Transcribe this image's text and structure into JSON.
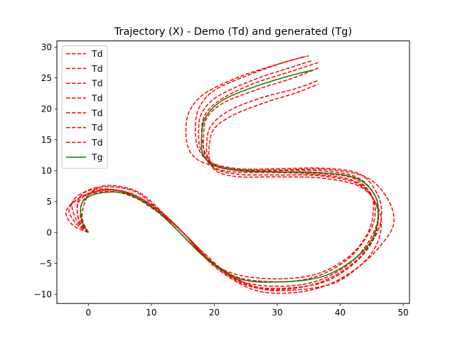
{
  "chart_data": {
    "type": "line",
    "title": "Trajectory (X) - Demo (Td) and generated (Tg)",
    "xlabel": "",
    "ylabel": "",
    "xlim": [
      -5,
      51
    ],
    "ylim": [
      -11.5,
      31
    ],
    "xticks": [
      0,
      10,
      20,
      30,
      40,
      50
    ],
    "yticks": [
      -10,
      -5,
      0,
      5,
      10,
      15,
      20,
      25,
      30
    ],
    "grid": false,
    "legend_position": "upper-left",
    "series": [
      {
        "name": "Td",
        "color": "#ff0000",
        "style": "dashed",
        "x": [
          0,
          -2,
          -3,
          0,
          5,
          10,
          14,
          18,
          23,
          30,
          36,
          41,
          44,
          45.5,
          45,
          42,
          36,
          30,
          24,
          20,
          18.5,
          18,
          18.5,
          21,
          26,
          32,
          36.5
        ],
        "y": [
          0,
          1.5,
          4,
          6.3,
          6.8,
          4.5,
          1,
          -3,
          -7,
          -8,
          -7.2,
          -4.5,
          -1,
          2.5,
          6,
          8.8,
          9.6,
          9.8,
          10,
          11,
          13,
          16,
          19,
          21.5,
          24,
          26,
          27.5
        ]
      },
      {
        "name": "Td",
        "color": "#ff0000",
        "style": "dashed",
        "x": [
          0,
          -1.5,
          -1.5,
          1.5,
          7,
          11,
          15,
          19,
          25,
          31,
          37,
          42,
          45,
          46.5,
          46,
          43,
          37,
          30,
          24,
          19.5,
          17.5,
          17,
          17.5,
          20,
          25.5,
          31,
          35
        ],
        "y": [
          0,
          2,
          5.5,
          7.3,
          6.8,
          3.8,
          0,
          -4.5,
          -8.5,
          -9.2,
          -8,
          -5,
          -1.5,
          2,
          6,
          9.5,
          10.4,
          10.3,
          10.3,
          11.3,
          13.5,
          16.5,
          20,
          23,
          25.5,
          27.5,
          28.6
        ]
      },
      {
        "name": "Td",
        "color": "#ff0000",
        "style": "dashed",
        "x": [
          0,
          -2.5,
          -3.5,
          -1,
          4,
          9,
          13,
          17,
          22,
          29,
          36,
          41,
          44,
          45.2,
          44.8,
          41.5,
          35,
          29,
          23,
          19.8,
          18.5,
          18.3,
          18.8,
          21.5,
          27,
          32.5,
          36.5
        ],
        "y": [
          0,
          1.2,
          3.5,
          5.8,
          6.6,
          4.8,
          1.5,
          -2.5,
          -6.3,
          -7.5,
          -6.8,
          -4.2,
          -0.8,
          2.8,
          6.3,
          8.6,
          9.5,
          9.7,
          9.8,
          10.6,
          12.5,
          15.5,
          18.5,
          21,
          23.2,
          25,
          26.6
        ]
      },
      {
        "name": "Td",
        "color": "#ff0000",
        "style": "dashed",
        "x": [
          0,
          -1,
          0,
          3,
          8,
          12,
          16,
          20,
          26,
          32,
          38,
          43,
          46.5,
          48.5,
          47.5,
          44,
          37.5,
          30,
          23.5,
          18.5,
          16.2,
          15.5,
          16,
          18.5,
          24,
          30,
          34.5
        ],
        "y": [
          0,
          2.5,
          6,
          7.6,
          6.5,
          3,
          -1,
          -5.5,
          -9.2,
          -9.8,
          -8.5,
          -5.5,
          -2,
          1.5,
          5.5,
          9,
          10.2,
          10.1,
          10.2,
          11.2,
          13,
          16,
          19.5,
          22.5,
          25.2,
          27.2,
          28.5
        ]
      },
      {
        "name": "Td",
        "color": "#ff0000",
        "style": "dashed",
        "x": [
          0,
          -1.8,
          -2.5,
          0.5,
          5.5,
          10,
          14.5,
          18.5,
          24,
          30.5,
          36.5,
          41.5,
          44.5,
          46,
          45.5,
          42.5,
          36.5,
          30,
          24,
          20,
          18,
          17.5,
          18,
          20.5,
          26,
          31.5,
          35.5
        ],
        "y": [
          0,
          1.8,
          5,
          6.9,
          6.6,
          4,
          0.5,
          -3.8,
          -7.8,
          -8.7,
          -7.8,
          -5,
          -1.5,
          2.2,
          6,
          9,
          10,
          10,
          10.1,
          11,
          13,
          16,
          19.3,
          22,
          24.6,
          26.5,
          27.8
        ]
      },
      {
        "name": "Td",
        "color": "#ff0000",
        "style": "dashed",
        "x": [
          0,
          -1.2,
          -0.8,
          2,
          7,
          11.5,
          16,
          20.5,
          27,
          33,
          39,
          43,
          45.5,
          46.5,
          45.8,
          43,
          37,
          30,
          24,
          20.5,
          19.3,
          19.2,
          20,
          23,
          28,
          33,
          36.5
        ],
        "y": [
          0,
          2,
          5.2,
          6.8,
          6.2,
          3.2,
          -1,
          -5.5,
          -9,
          -9.3,
          -8.2,
          -5.5,
          -2.5,
          1,
          4.5,
          7.5,
          8.8,
          9,
          9,
          9.8,
          11.5,
          14,
          16.8,
          19,
          21,
          22.6,
          24
        ]
      },
      {
        "name": "Td",
        "color": "#ff0000",
        "style": "dashed",
        "x": [
          0,
          -1.5,
          -1.5,
          1.5,
          6.5,
          11,
          15.5,
          19.5,
          25.5,
          31.5,
          37.5,
          42,
          44.8,
          46,
          45.5,
          42.5,
          36.5,
          30,
          24,
          20.3,
          19,
          18.8,
          19.5,
          22.5,
          27.5,
          33,
          36.5
        ],
        "y": [
          0,
          1.8,
          5,
          6.8,
          6.4,
          3.5,
          -0.5,
          -4.8,
          -8.5,
          -9,
          -8,
          -5.2,
          -2,
          1.5,
          5,
          8,
          9.2,
          9.3,
          9.4,
          10.2,
          12,
          14.5,
          17.3,
          19.8,
          21.8,
          23.3,
          24.6
        ]
      },
      {
        "name": "Tg",
        "color": "#007f00",
        "style": "solid",
        "x": [
          0,
          -1,
          -1,
          1.5,
          6,
          10.5,
          14.5,
          18.5,
          24,
          30.5,
          37,
          42,
          45,
          46,
          45.5,
          42.5,
          36.5,
          30,
          24,
          20,
          18.2,
          18,
          18.7,
          21.5,
          27,
          32.5,
          35.8
        ],
        "y": [
          0,
          1.8,
          4.8,
          6.3,
          6.3,
          3.8,
          0,
          -4,
          -7.5,
          -8,
          -7.2,
          -4.5,
          -1.2,
          2.5,
          6,
          8.8,
          9.7,
          9.8,
          10,
          10.8,
          12.7,
          15.8,
          18.8,
          21.5,
          23.8,
          25.5,
          26.3
        ]
      }
    ]
  }
}
